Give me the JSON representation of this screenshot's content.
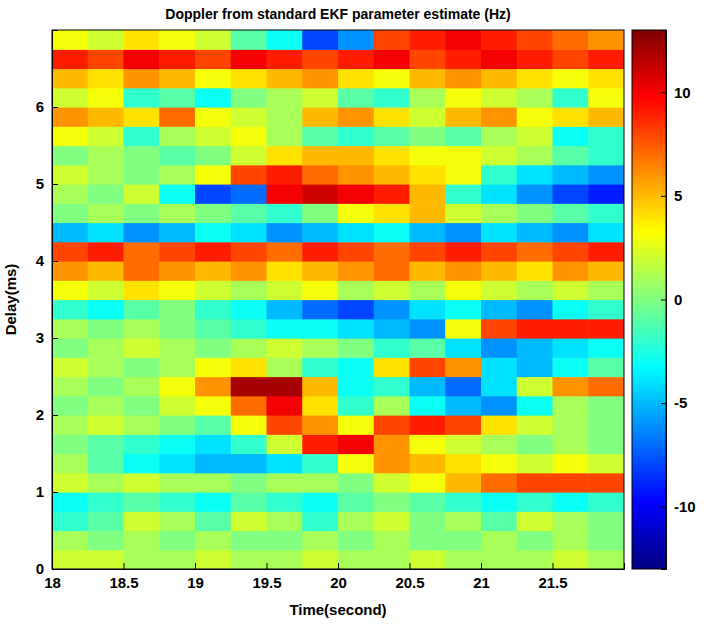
{
  "chart_data": {
    "type": "heatmap",
    "title": "Doppler from standard EKF parameter estimate (Hz)",
    "xlabel": "Time(second)",
    "ylabel": "Delay(ms)",
    "x": [
      18.125,
      18.375,
      18.625,
      18.875,
      19.125,
      19.375,
      19.625,
      19.875,
      20.125,
      20.375,
      20.625,
      20.875,
      21.125,
      21.375,
      21.625,
      21.875
    ],
    "y": [
      0.125,
      0.375,
      0.625,
      0.875,
      1.125,
      1.375,
      1.625,
      1.875,
      2.125,
      2.375,
      2.625,
      2.875,
      3.125,
      3.375,
      3.625,
      3.875,
      4.125,
      4.375,
      4.625,
      4.875,
      5.125,
      5.375,
      5.625,
      5.875,
      6.125,
      6.375,
      6.625,
      6.875
    ],
    "z": [
      [
        2,
        2,
        1,
        1,
        2,
        1,
        1,
        2,
        1,
        1,
        2,
        1,
        1,
        1,
        2,
        1
      ],
      [
        1,
        0,
        1,
        0,
        1,
        0,
        0,
        1,
        0,
        1,
        0,
        0,
        1,
        0,
        1,
        0
      ],
      [
        -2,
        -1,
        2,
        1,
        -1,
        2,
        1,
        -2,
        1,
        2,
        0,
        1,
        -1,
        2,
        1,
        0
      ],
      [
        -3,
        -2,
        -1,
        -2,
        -3,
        -1,
        -2,
        -3,
        -1,
        0,
        -1,
        -2,
        -3,
        -2,
        -3,
        -2
      ],
      [
        2,
        1,
        2,
        1,
        1,
        0,
        1,
        1,
        0,
        2,
        3,
        5,
        7,
        8,
        8,
        8
      ],
      [
        1,
        -1,
        -3,
        -4,
        -5,
        -5,
        -4,
        -2,
        3,
        6,
        5,
        4,
        3,
        2,
        3,
        2
      ],
      [
        0,
        -1,
        -2,
        -3,
        -4,
        -2,
        2,
        9,
        10,
        6,
        3,
        2,
        1,
        0,
        1,
        0
      ],
      [
        1,
        2,
        1,
        0,
        -1,
        3,
        8,
        6,
        3,
        8,
        9,
        8,
        4,
        2,
        1,
        0
      ],
      [
        0,
        1,
        0,
        2,
        3,
        7,
        10,
        4,
        -2,
        1,
        -3,
        -5,
        -6,
        -3,
        1,
        0
      ],
      [
        1,
        0,
        1,
        3,
        6,
        12,
        12,
        5,
        -3,
        -2,
        -5,
        -7,
        -4,
        2,
        6,
        7
      ],
      [
        2,
        1,
        0,
        1,
        3,
        4,
        1,
        -2,
        -3,
        4,
        8,
        6,
        -4,
        -5,
        -3,
        -1
      ],
      [
        0,
        1,
        2,
        1,
        0,
        1,
        2,
        1,
        0,
        -2,
        -1,
        -4,
        -6,
        -5,
        -4,
        -3
      ],
      [
        1,
        0,
        1,
        0,
        -1,
        -2,
        -3,
        -3,
        -4,
        -5,
        -6,
        3,
        8,
        9,
        9,
        9
      ],
      [
        -2,
        -3,
        -1,
        0,
        -2,
        -3,
        -5,
        -7,
        -8,
        -6,
        -4,
        -3,
        -5,
        -6,
        -3,
        -2
      ],
      [
        3,
        2,
        4,
        3,
        2,
        1,
        2,
        3,
        1,
        2,
        1,
        3,
        2,
        1,
        2,
        1
      ],
      [
        6,
        5,
        7,
        6,
        5,
        6,
        4,
        5,
        6,
        7,
        5,
        6,
        5,
        4,
        6,
        5
      ],
      [
        8,
        9,
        7,
        8,
        9,
        8,
        7,
        9,
        8,
        7,
        8,
        9,
        8,
        7,
        8,
        9
      ],
      [
        -5,
        -4,
        -6,
        -5,
        -3,
        -4,
        -6,
        -5,
        -4,
        -3,
        -5,
        -6,
        -4,
        -5,
        -6,
        -4
      ],
      [
        0,
        1,
        0,
        1,
        0,
        -1,
        -2,
        0,
        3,
        4,
        5,
        2,
        1,
        0,
        -1,
        -2
      ],
      [
        1,
        0,
        2,
        -3,
        -8,
        -7,
        10,
        11,
        10,
        9,
        5,
        -2,
        -4,
        -6,
        -8,
        -9
      ],
      [
        2,
        1,
        0,
        1,
        3,
        8,
        9,
        7,
        6,
        5,
        4,
        3,
        -2,
        -4,
        -5,
        -6
      ],
      [
        0,
        1,
        0,
        -1,
        0,
        2,
        4,
        5,
        5,
        4,
        3,
        3,
        2,
        1,
        -1,
        -2
      ],
      [
        3,
        2,
        -2,
        1,
        2,
        3,
        1,
        -1,
        -2,
        -1,
        0,
        -1,
        1,
        2,
        -3,
        -2
      ],
      [
        6,
        5,
        4,
        7,
        3,
        2,
        1,
        5,
        6,
        4,
        2,
        5,
        6,
        3,
        4,
        5
      ],
      [
        2,
        3,
        -2,
        -1,
        -3,
        0,
        1,
        2,
        -1,
        -2,
        1,
        3,
        2,
        1,
        -2,
        3
      ],
      [
        5,
        4,
        6,
        5,
        3,
        4,
        5,
        6,
        4,
        3,
        5,
        6,
        5,
        4,
        3,
        4
      ],
      [
        9,
        8,
        10,
        9,
        8,
        10,
        9,
        8,
        9,
        10,
        8,
        9,
        10,
        9,
        8,
        9
      ],
      [
        3,
        2,
        4,
        3,
        2,
        -1,
        -3,
        -8,
        -6,
        8,
        9,
        10,
        9,
        8,
        7,
        6
      ]
    ],
    "xlim": [
      18,
      22
    ],
    "ylim": [
      0,
      7
    ],
    "xticks": [
      18,
      18.5,
      19,
      19.5,
      20,
      20.5,
      21,
      21.5
    ],
    "yticks": [
      0,
      1,
      2,
      3,
      4,
      5,
      6
    ],
    "zlim": [
      -13,
      13
    ],
    "zticks": [
      -10,
      -5,
      0,
      5,
      10
    ]
  }
}
